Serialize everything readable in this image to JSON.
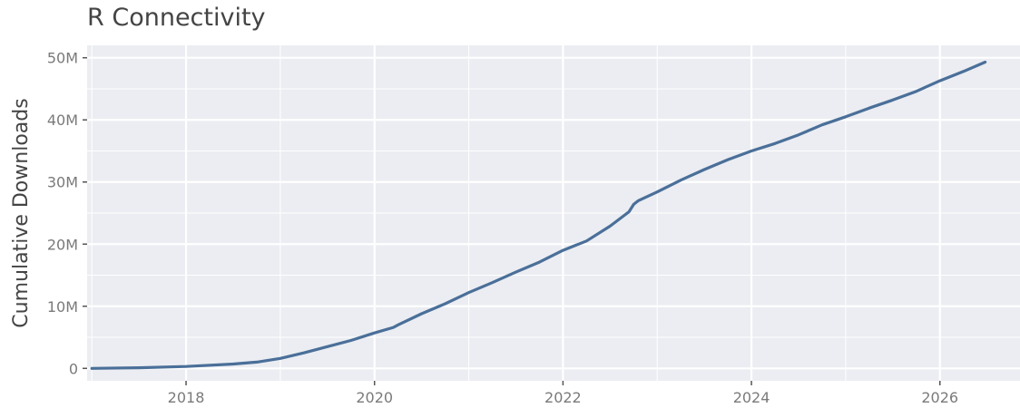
{
  "chart_data": {
    "type": "line",
    "title": "R Connectivity",
    "xlabel": "",
    "ylabel": "Cumulative Downloads",
    "xlim": [
      2016.95,
      2026.85
    ],
    "ylim": [
      -2000000,
      52000000
    ],
    "x_ticks": [
      {
        "value": 2018,
        "label": "2018"
      },
      {
        "value": 2020,
        "label": "2020"
      },
      {
        "value": 2022,
        "label": "2022"
      },
      {
        "value": 2024,
        "label": "2024"
      },
      {
        "value": 2026,
        "label": "2026"
      }
    ],
    "y_ticks": [
      {
        "value": 0,
        "label": "0"
      },
      {
        "value": 10000000,
        "label": "10M"
      },
      {
        "value": 20000000,
        "label": "20M"
      },
      {
        "value": 30000000,
        "label": "30M"
      },
      {
        "value": 40000000,
        "label": "40M"
      },
      {
        "value": 50000000,
        "label": "50M"
      }
    ],
    "grid": true,
    "legend": "none",
    "colors": {
      "panel": "#ebedf2",
      "grid": "#ffffff",
      "line": "#4a6f99"
    },
    "series": [
      {
        "x": [
          2017.0,
          2017.5,
          2018.0,
          2018.5,
          2018.75,
          2019.0,
          2019.25,
          2019.5,
          2019.75,
          2020.0,
          2020.2,
          2020.25,
          2020.5,
          2020.75,
          2021.0,
          2021.25,
          2021.5,
          2021.75,
          2022.0,
          2022.25,
          2022.5,
          2022.7,
          2022.75,
          2022.8,
          2023.0,
          2023.25,
          2023.5,
          2023.75,
          2024.0,
          2024.25,
          2024.5,
          2024.75,
          2025.0,
          2025.25,
          2025.5,
          2025.75,
          2026.0,
          2026.25,
          2026.48
        ],
        "y": [
          0,
          100000,
          300000,
          700000,
          1000000,
          1600000,
          2500000,
          3500000,
          4500000,
          5700000,
          6600000,
          7000000,
          8800000,
          10400000,
          12200000,
          13800000,
          15500000,
          17100000,
          19000000,
          20500000,
          22900000,
          25200000,
          26400000,
          27000000,
          28400000,
          30300000,
          32000000,
          33600000,
          35000000,
          36200000,
          37600000,
          39200000,
          40500000,
          41900000,
          43200000,
          44600000,
          46300000,
          47800000,
          49300000
        ]
      }
    ]
  }
}
